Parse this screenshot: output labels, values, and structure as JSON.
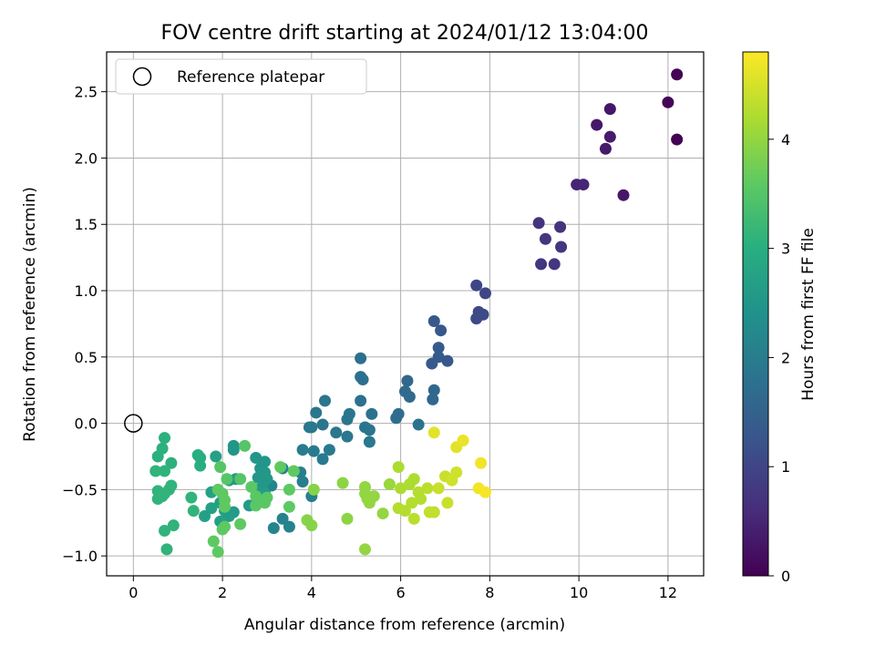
{
  "chart_data": {
    "type": "scatter",
    "title": "FOV centre drift starting at 2024/01/12 13:04:00",
    "xlabel": "Angular distance from reference (arcmin)",
    "ylabel": "Rotation from reference (arcmin)",
    "xlim": [
      -0.6,
      12.8
    ],
    "ylim": [
      -1.15,
      2.8
    ],
    "xticks": [
      0,
      2,
      4,
      6,
      8,
      10,
      12
    ],
    "yticks": [
      -1.0,
      -0.5,
      0.0,
      0.5,
      1.0,
      1.5,
      2.0,
      2.5
    ],
    "grid": true,
    "legend": {
      "placement": "top-left",
      "entries": [
        {
          "label": "Reference platepar",
          "marker": "open-circle",
          "color": "#000000"
        }
      ]
    },
    "reference_point": {
      "x": 0,
      "y": 0
    },
    "colorbar": {
      "label": "Hours from first FF file",
      "colormap": "viridis",
      "range": [
        0,
        4.8
      ],
      "ticks": [
        0,
        1,
        2,
        3,
        4
      ]
    },
    "points": [
      {
        "x": 12.2,
        "y": 2.63,
        "c": 0.0
      },
      {
        "x": 12.0,
        "y": 2.42,
        "c": 0.05
      },
      {
        "x": 12.2,
        "y": 2.14,
        "c": 0.0
      },
      {
        "x": 10.7,
        "y": 2.37,
        "c": 0.3
      },
      {
        "x": 10.4,
        "y": 2.25,
        "c": 0.3
      },
      {
        "x": 10.7,
        "y": 2.16,
        "c": 0.35
      },
      {
        "x": 10.6,
        "y": 2.07,
        "c": 0.35
      },
      {
        "x": 9.95,
        "y": 1.8,
        "c": 0.5
      },
      {
        "x": 10.1,
        "y": 1.8,
        "c": 0.5
      },
      {
        "x": 11.0,
        "y": 1.72,
        "c": 0.3
      },
      {
        "x": 9.1,
        "y": 1.51,
        "c": 0.7
      },
      {
        "x": 9.58,
        "y": 1.48,
        "c": 0.7
      },
      {
        "x": 9.25,
        "y": 1.39,
        "c": 0.75
      },
      {
        "x": 9.6,
        "y": 1.33,
        "c": 0.75
      },
      {
        "x": 9.15,
        "y": 1.2,
        "c": 0.75
      },
      {
        "x": 9.45,
        "y": 1.2,
        "c": 0.75
      },
      {
        "x": 7.7,
        "y": 1.04,
        "c": 1.0
      },
      {
        "x": 7.9,
        "y": 0.98,
        "c": 1.0
      },
      {
        "x": 7.75,
        "y": 0.84,
        "c": 1.05
      },
      {
        "x": 7.85,
        "y": 0.82,
        "c": 1.05
      },
      {
        "x": 7.7,
        "y": 0.79,
        "c": 1.05
      },
      {
        "x": 6.75,
        "y": 0.77,
        "c": 1.3
      },
      {
        "x": 6.9,
        "y": 0.7,
        "c": 1.3
      },
      {
        "x": 6.85,
        "y": 0.57,
        "c": 1.35
      },
      {
        "x": 6.85,
        "y": 0.5,
        "c": 1.35
      },
      {
        "x": 6.7,
        "y": 0.45,
        "c": 1.35
      },
      {
        "x": 7.05,
        "y": 0.47,
        "c": 1.3
      },
      {
        "x": 6.15,
        "y": 0.32,
        "c": 1.6
      },
      {
        "x": 6.1,
        "y": 0.24,
        "c": 1.65
      },
      {
        "x": 6.75,
        "y": 0.25,
        "c": 1.6
      },
      {
        "x": 6.2,
        "y": 0.2,
        "c": 1.65
      },
      {
        "x": 6.72,
        "y": 0.18,
        "c": 1.6
      },
      {
        "x": 5.95,
        "y": 0.07,
        "c": 1.7
      },
      {
        "x": 5.9,
        "y": 0.04,
        "c": 1.7
      },
      {
        "x": 6.4,
        "y": -0.01,
        "c": 1.8
      },
      {
        "x": 5.1,
        "y": 0.49,
        "c": 1.75
      },
      {
        "x": 5.1,
        "y": 0.35,
        "c": 1.75
      },
      {
        "x": 5.15,
        "y": 0.33,
        "c": 1.75
      },
      {
        "x": 5.1,
        "y": 0.17,
        "c": 1.8
      },
      {
        "x": 4.3,
        "y": 0.17,
        "c": 1.85
      },
      {
        "x": 4.1,
        "y": 0.08,
        "c": 1.85
      },
      {
        "x": 4.85,
        "y": 0.07,
        "c": 1.85
      },
      {
        "x": 5.35,
        "y": 0.07,
        "c": 1.8
      },
      {
        "x": 4.8,
        "y": 0.03,
        "c": 1.85
      },
      {
        "x": 3.95,
        "y": -0.03,
        "c": 1.9
      },
      {
        "x": 4.0,
        "y": -0.03,
        "c": 1.9
      },
      {
        "x": 4.25,
        "y": -0.01,
        "c": 1.85
      },
      {
        "x": 5.2,
        "y": -0.03,
        "c": 1.85
      },
      {
        "x": 5.3,
        "y": -0.05,
        "c": 1.85
      },
      {
        "x": 4.55,
        "y": -0.07,
        "c": 1.9
      },
      {
        "x": 4.8,
        "y": -0.1,
        "c": 1.9
      },
      {
        "x": 5.3,
        "y": -0.14,
        "c": 1.9
      },
      {
        "x": 4.4,
        "y": -0.2,
        "c": 1.95
      },
      {
        "x": 4.05,
        "y": -0.21,
        "c": 1.95
      },
      {
        "x": 4.25,
        "y": -0.27,
        "c": 1.95
      },
      {
        "x": 3.8,
        "y": -0.2,
        "c": 2.0
      },
      {
        "x": 3.75,
        "y": -0.37,
        "c": 2.05
      },
      {
        "x": 3.8,
        "y": -0.44,
        "c": 2.05
      },
      {
        "x": 4.0,
        "y": -0.55,
        "c": 2.05
      },
      {
        "x": 3.35,
        "y": -0.34,
        "c": 2.1
      },
      {
        "x": 3.35,
        "y": -0.72,
        "c": 2.1
      },
      {
        "x": 3.5,
        "y": -0.78,
        "c": 2.1
      },
      {
        "x": 3.15,
        "y": -0.79,
        "c": 2.15
      },
      {
        "x": 3.1,
        "y": -0.47,
        "c": 2.15
      },
      {
        "x": 2.25,
        "y": -0.17,
        "c": 2.5
      },
      {
        "x": 2.25,
        "y": -0.2,
        "c": 2.5
      },
      {
        "x": 2.75,
        "y": -0.26,
        "c": 2.5
      },
      {
        "x": 2.95,
        "y": -0.29,
        "c": 2.5
      },
      {
        "x": 2.85,
        "y": -0.34,
        "c": 2.5
      },
      {
        "x": 2.95,
        "y": -0.37,
        "c": 2.55
      },
      {
        "x": 2.8,
        "y": -0.41,
        "c": 2.55
      },
      {
        "x": 3.0,
        "y": -0.42,
        "c": 2.55
      },
      {
        "x": 2.3,
        "y": -0.42,
        "c": 2.55
      },
      {
        "x": 2.15,
        "y": -0.43,
        "c": 2.55
      },
      {
        "x": 2.9,
        "y": -0.48,
        "c": 2.55
      },
      {
        "x": 2.75,
        "y": -0.5,
        "c": 2.6
      },
      {
        "x": 2.95,
        "y": -0.53,
        "c": 2.6
      },
      {
        "x": 2.6,
        "y": -0.62,
        "c": 2.6
      },
      {
        "x": 2.25,
        "y": -0.67,
        "c": 2.6
      },
      {
        "x": 1.95,
        "y": -0.6,
        "c": 2.65
      },
      {
        "x": 2.05,
        "y": -0.66,
        "c": 2.65
      },
      {
        "x": 2.15,
        "y": -0.7,
        "c": 2.65
      },
      {
        "x": 1.85,
        "y": -0.25,
        "c": 2.7
      },
      {
        "x": 1.75,
        "y": -0.52,
        "c": 2.7
      },
      {
        "x": 1.75,
        "y": -0.64,
        "c": 2.7
      },
      {
        "x": 1.6,
        "y": -0.7,
        "c": 2.7
      },
      {
        "x": 1.95,
        "y": -0.74,
        "c": 2.7
      },
      {
        "x": 1.5,
        "y": -0.26,
        "c": 3.0
      },
      {
        "x": 1.45,
        "y": -0.24,
        "c": 3.0
      },
      {
        "x": 1.5,
        "y": -0.32,
        "c": 3.0
      },
      {
        "x": 0.7,
        "y": -0.11,
        "c": 3.05
      },
      {
        "x": 0.65,
        "y": -0.19,
        "c": 3.05
      },
      {
        "x": 0.55,
        "y": -0.25,
        "c": 3.05
      },
      {
        "x": 0.85,
        "y": -0.3,
        "c": 3.05
      },
      {
        "x": 0.5,
        "y": -0.36,
        "c": 3.1
      },
      {
        "x": 0.7,
        "y": -0.36,
        "c": 3.1
      },
      {
        "x": 0.85,
        "y": -0.47,
        "c": 3.1
      },
      {
        "x": 0.8,
        "y": -0.5,
        "c": 3.1
      },
      {
        "x": 0.55,
        "y": -0.51,
        "c": 3.1
      },
      {
        "x": 0.7,
        "y": -0.53,
        "c": 3.1
      },
      {
        "x": 0.55,
        "y": -0.57,
        "c": 3.1
      },
      {
        "x": 0.65,
        "y": -0.55,
        "c": 3.1
      },
      {
        "x": 1.3,
        "y": -0.56,
        "c": 3.1
      },
      {
        "x": 1.35,
        "y": -0.66,
        "c": 3.1
      },
      {
        "x": 0.9,
        "y": -0.77,
        "c": 3.1
      },
      {
        "x": 0.7,
        "y": -0.81,
        "c": 3.1
      },
      {
        "x": 0.75,
        "y": -0.95,
        "c": 3.1
      },
      {
        "x": 2.5,
        "y": -0.17,
        "c": 3.5
      },
      {
        "x": 2.4,
        "y": -0.42,
        "c": 3.5
      },
      {
        "x": 2.1,
        "y": -0.42,
        "c": 3.5
      },
      {
        "x": 1.95,
        "y": -0.33,
        "c": 3.5
      },
      {
        "x": 2.65,
        "y": -0.48,
        "c": 3.55
      },
      {
        "x": 2.75,
        "y": -0.55,
        "c": 3.55
      },
      {
        "x": 2.85,
        "y": -0.58,
        "c": 3.55
      },
      {
        "x": 2.75,
        "y": -0.62,
        "c": 3.55
      },
      {
        "x": 2.95,
        "y": -0.6,
        "c": 3.55
      },
      {
        "x": 3.0,
        "y": -0.56,
        "c": 3.55
      },
      {
        "x": 1.9,
        "y": -0.5,
        "c": 3.6
      },
      {
        "x": 2.0,
        "y": -0.53,
        "c": 3.6
      },
      {
        "x": 2.05,
        "y": -0.58,
        "c": 3.6
      },
      {
        "x": 2.05,
        "y": -0.63,
        "c": 3.6
      },
      {
        "x": 2.05,
        "y": -0.78,
        "c": 3.6
      },
      {
        "x": 2.0,
        "y": -0.8,
        "c": 3.6
      },
      {
        "x": 2.4,
        "y": -0.76,
        "c": 3.6
      },
      {
        "x": 1.8,
        "y": -0.89,
        "c": 3.6
      },
      {
        "x": 1.9,
        "y": -0.97,
        "c": 3.6
      },
      {
        "x": 3.3,
        "y": -0.33,
        "c": 3.6
      },
      {
        "x": 3.6,
        "y": -0.36,
        "c": 3.6
      },
      {
        "x": 3.5,
        "y": -0.5,
        "c": 3.6
      },
      {
        "x": 3.5,
        "y": -0.63,
        "c": 3.6
      },
      {
        "x": 4.05,
        "y": -0.5,
        "c": 3.9
      },
      {
        "x": 3.9,
        "y": -0.73,
        "c": 3.9
      },
      {
        "x": 4.0,
        "y": -0.77,
        "c": 3.9
      },
      {
        "x": 4.7,
        "y": -0.45,
        "c": 3.95
      },
      {
        "x": 4.8,
        "y": -0.72,
        "c": 3.95
      },
      {
        "x": 5.2,
        "y": -0.48,
        "c": 4.0
      },
      {
        "x": 5.2,
        "y": -0.53,
        "c": 4.0
      },
      {
        "x": 5.25,
        "y": -0.57,
        "c": 4.0
      },
      {
        "x": 5.3,
        "y": -0.6,
        "c": 4.0
      },
      {
        "x": 5.4,
        "y": -0.55,
        "c": 4.0
      },
      {
        "x": 5.6,
        "y": -0.68,
        "c": 4.0
      },
      {
        "x": 5.75,
        "y": -0.46,
        "c": 4.05
      },
      {
        "x": 5.2,
        "y": -0.95,
        "c": 4.0
      },
      {
        "x": 5.95,
        "y": -0.33,
        "c": 4.2
      },
      {
        "x": 6.0,
        "y": -0.49,
        "c": 4.2
      },
      {
        "x": 6.2,
        "y": -0.46,
        "c": 4.2
      },
      {
        "x": 6.3,
        "y": -0.42,
        "c": 4.2
      },
      {
        "x": 6.4,
        "y": -0.52,
        "c": 4.25
      },
      {
        "x": 6.25,
        "y": -0.6,
        "c": 4.25
      },
      {
        "x": 6.45,
        "y": -0.57,
        "c": 4.25
      },
      {
        "x": 5.95,
        "y": -0.64,
        "c": 4.25
      },
      {
        "x": 6.1,
        "y": -0.66,
        "c": 4.25
      },
      {
        "x": 6.3,
        "y": -0.72,
        "c": 4.3
      },
      {
        "x": 6.6,
        "y": -0.49,
        "c": 4.3
      },
      {
        "x": 6.65,
        "y": -0.67,
        "c": 4.35
      },
      {
        "x": 6.75,
        "y": -0.67,
        "c": 4.35
      },
      {
        "x": 6.85,
        "y": -0.49,
        "c": 4.4
      },
      {
        "x": 7.0,
        "y": -0.4,
        "c": 4.4
      },
      {
        "x": 7.05,
        "y": -0.6,
        "c": 4.4
      },
      {
        "x": 7.15,
        "y": -0.43,
        "c": 4.45
      },
      {
        "x": 7.25,
        "y": -0.37,
        "c": 4.45
      },
      {
        "x": 6.75,
        "y": -0.07,
        "c": 4.6
      },
      {
        "x": 7.25,
        "y": -0.18,
        "c": 4.6
      },
      {
        "x": 7.4,
        "y": -0.13,
        "c": 4.65
      },
      {
        "x": 7.8,
        "y": -0.3,
        "c": 4.7
      },
      {
        "x": 7.75,
        "y": -0.49,
        "c": 4.7
      },
      {
        "x": 7.9,
        "y": -0.52,
        "c": 4.75
      }
    ]
  }
}
